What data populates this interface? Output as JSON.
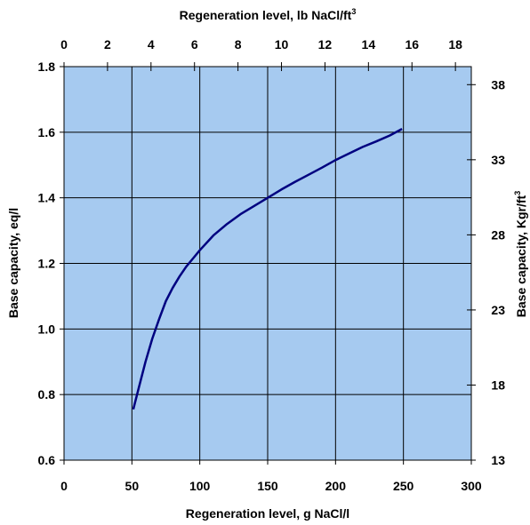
{
  "chart_data": {
    "type": "line",
    "xlabel": "Regeneration level, g NaCl/l",
    "x2label": "Regeneration level, lb NaCl/ft",
    "x2label_sup": "3",
    "ylabel": "Base capacity, eq/l",
    "y2label": "Base capacity, Kgr/ft",
    "y2label_sup": "3",
    "xlim": [
      0,
      300
    ],
    "ylim": [
      0.6,
      1.8
    ],
    "x2lim": [
      0,
      18.73
    ],
    "y2lim": [
      13,
      39.2
    ],
    "xticks": [
      0,
      50,
      100,
      150,
      200,
      250,
      300
    ],
    "yticks": [
      0.6,
      0.8,
      1.0,
      1.2,
      1.4,
      1.6,
      1.8
    ],
    "x2ticks": [
      0,
      2,
      4,
      6,
      8,
      10,
      12,
      14,
      16,
      18
    ],
    "y2ticks": [
      13,
      18,
      23,
      28,
      33,
      38
    ],
    "xtick_labels": [
      "0",
      "50",
      "100",
      "150",
      "200",
      "250",
      "300"
    ],
    "ytick_labels": [
      "0.6",
      "0.8",
      "1.0",
      "1.2",
      "1.4",
      "1.6",
      "1.8"
    ],
    "x2tick_labels": [
      "0",
      "2",
      "4",
      "6",
      "8",
      "10",
      "12",
      "14",
      "16",
      "18"
    ],
    "y2tick_labels": [
      "13",
      "18",
      "23",
      "28",
      "33",
      "38"
    ],
    "grid": true,
    "plot_background": "#a6caf0",
    "line_color": "#000080",
    "series": [
      {
        "x": [
          51,
          55,
          60,
          65,
          70,
          75,
          80,
          85,
          90,
          95,
          100,
          110,
          120,
          130,
          140,
          150,
          160,
          170,
          180,
          190,
          200,
          210,
          220,
          230,
          240,
          249
        ],
        "values": [
          0.755,
          0.82,
          0.9,
          0.97,
          1.03,
          1.085,
          1.125,
          1.16,
          1.19,
          1.215,
          1.24,
          1.285,
          1.32,
          1.35,
          1.375,
          1.4,
          1.425,
          1.448,
          1.47,
          1.492,
          1.515,
          1.535,
          1.555,
          1.572,
          1.59,
          1.61
        ]
      }
    ]
  }
}
